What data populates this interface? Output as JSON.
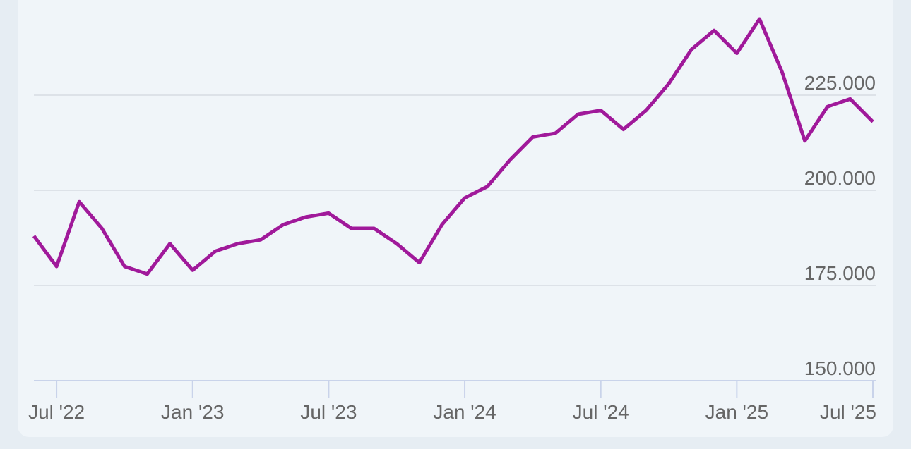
{
  "chart_data": {
    "type": "line",
    "x": [
      "2022-06",
      "2022-07",
      "2022-08",
      "2022-09",
      "2022-10",
      "2022-11",
      "2022-12",
      "2023-01",
      "2023-02",
      "2023-03",
      "2023-04",
      "2023-05",
      "2023-06",
      "2023-07",
      "2023-08",
      "2023-09",
      "2023-10",
      "2023-11",
      "2023-12",
      "2024-01",
      "2024-02",
      "2024-03",
      "2024-04",
      "2024-05",
      "2024-06",
      "2024-07",
      "2024-08",
      "2024-09",
      "2024-10",
      "2024-11",
      "2024-12",
      "2025-01",
      "2025-02",
      "2025-03",
      "2025-04",
      "2025-05",
      "2025-06",
      "2025-07"
    ],
    "series": [
      {
        "color": "#a0199a",
        "values": [
          188,
          180,
          197,
          190,
          180,
          178,
          186,
          179,
          184,
          186,
          187,
          191,
          193,
          194,
          190,
          190,
          186,
          181,
          191,
          198,
          201,
          208,
          214,
          215,
          220,
          221,
          216,
          221,
          228,
          237,
          242,
          236,
          245,
          231,
          213,
          222,
          224,
          218
        ]
      }
    ],
    "xlim": [
      "2022-06",
      "2025-07"
    ],
    "xticks": [
      {
        "value": "2022-07",
        "label": "Jul '22"
      },
      {
        "value": "2023-01",
        "label": "Jan '23"
      },
      {
        "value": "2023-07",
        "label": "Jul '23"
      },
      {
        "value": "2024-01",
        "label": "Jan '24"
      },
      {
        "value": "2024-07",
        "label": "Jul '24"
      },
      {
        "value": "2025-01",
        "label": "Jan '25"
      },
      {
        "value": "2025-07",
        "label": "Jul '25"
      }
    ],
    "ylim": [
      150,
      250
    ],
    "yticks": [
      {
        "value": 150,
        "label": "150.000"
      },
      {
        "value": 175,
        "label": "175.000"
      },
      {
        "value": 200,
        "label": "200.000"
      },
      {
        "value": 225,
        "label": "225.000"
      }
    ],
    "grid": true
  }
}
